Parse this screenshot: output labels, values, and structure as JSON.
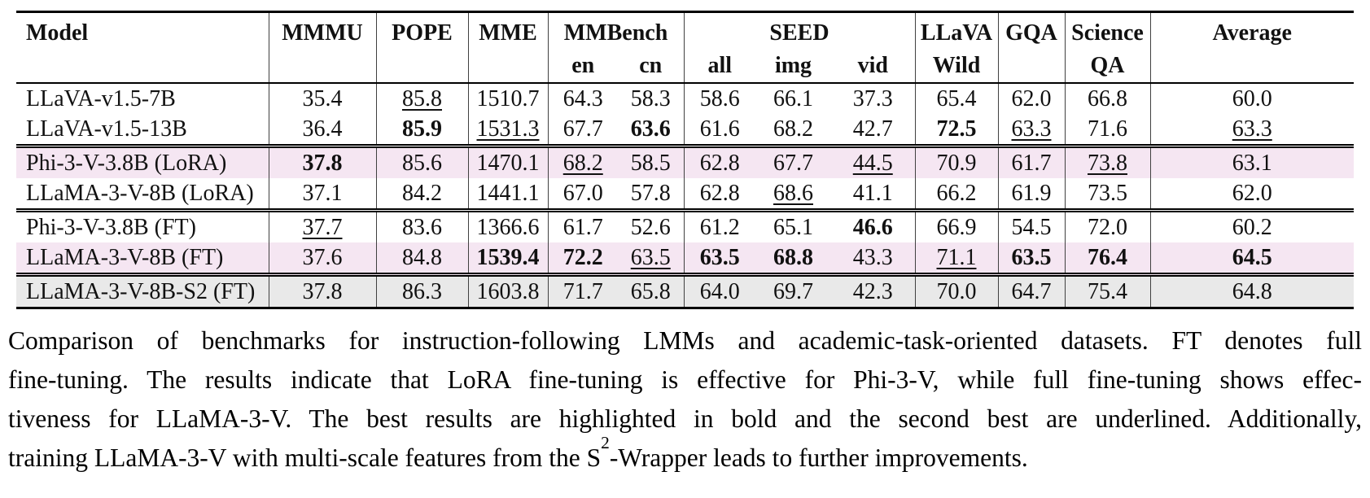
{
  "page": {
    "background": "#ffffff"
  },
  "table": {
    "highlight_colors": {
      "pink": "#f5e6f2",
      "gray": "#e9e9e9",
      "separator": "#404040",
      "rule": "#000000"
    },
    "columns": [
      {
        "id": "model",
        "label": [
          "Model"
        ]
      },
      {
        "id": "mmmu",
        "label": [
          "MMMU"
        ]
      },
      {
        "id": "pope",
        "label": [
          "POPE"
        ]
      },
      {
        "id": "mme",
        "label": [
          "MME"
        ]
      },
      {
        "id": "mmbench",
        "label": [
          "MMBench"
        ],
        "subs": [
          "en",
          "cn"
        ]
      },
      {
        "id": "seed",
        "label": [
          "SEED"
        ],
        "subs": [
          "all",
          "img",
          "vid"
        ]
      },
      {
        "id": "llava-wild",
        "label": [
          "LLaVA",
          "Wild"
        ]
      },
      {
        "id": "gqa",
        "label": [
          "GQA"
        ]
      },
      {
        "id": "science-qa",
        "label": [
          "Science",
          "QA"
        ]
      },
      {
        "id": "average",
        "label": [
          "Average"
        ]
      }
    ],
    "groups": [
      {
        "rows": [
          {
            "model": "LLaVA-v1.5-7B",
            "highlight": null,
            "cells": [
              {
                "v": "35.4"
              },
              {
                "v": "85.8",
                "u": true
              },
              {
                "v": "1510.7"
              },
              {
                "v": "64.3"
              },
              {
                "v": "58.3"
              },
              {
                "v": "58.6"
              },
              {
                "v": "66.1"
              },
              {
                "v": "37.3"
              },
              {
                "v": "65.4"
              },
              {
                "v": "62.0"
              },
              {
                "v": "66.8"
              },
              {
                "v": "60.0"
              }
            ]
          },
          {
            "model": "LLaVA-v1.5-13B",
            "highlight": null,
            "cells": [
              {
                "v": "36.4"
              },
              {
                "v": "85.9",
                "b": true
              },
              {
                "v": "1531.3",
                "u": true
              },
              {
                "v": "67.7"
              },
              {
                "v": "63.6",
                "b": true
              },
              {
                "v": "61.6"
              },
              {
                "v": "68.2"
              },
              {
                "v": "42.7"
              },
              {
                "v": "72.5",
                "b": true
              },
              {
                "v": "63.3",
                "u": true
              },
              {
                "v": "71.6"
              },
              {
                "v": "63.3",
                "u": true
              }
            ]
          }
        ]
      },
      {
        "rows": [
          {
            "model": "Phi-3-V-3.8B (LoRA)",
            "highlight": "pink",
            "cells": [
              {
                "v": "37.8",
                "b": true
              },
              {
                "v": "85.6"
              },
              {
                "v": "1470.1"
              },
              {
                "v": "68.2",
                "u": true
              },
              {
                "v": "58.5"
              },
              {
                "v": "62.8"
              },
              {
                "v": "67.7"
              },
              {
                "v": "44.5",
                "u": true
              },
              {
                "v": "70.9"
              },
              {
                "v": "61.7"
              },
              {
                "v": "73.8",
                "u": true
              },
              {
                "v": "63.1"
              }
            ]
          },
          {
            "model": "LLaMA-3-V-8B (LoRA)",
            "highlight": null,
            "cells": [
              {
                "v": "37.1"
              },
              {
                "v": "84.2"
              },
              {
                "v": "1441.1"
              },
              {
                "v": "67.0"
              },
              {
                "v": "57.8"
              },
              {
                "v": "62.8"
              },
              {
                "v": "68.6",
                "u": true
              },
              {
                "v": "41.1"
              },
              {
                "v": "66.2"
              },
              {
                "v": "61.9"
              },
              {
                "v": "73.5"
              },
              {
                "v": "62.0"
              }
            ]
          }
        ]
      },
      {
        "rows": [
          {
            "model": "Phi-3-V-3.8B (FT)",
            "highlight": null,
            "cells": [
              {
                "v": "37.7",
                "u": true
              },
              {
                "v": "83.6"
              },
              {
                "v": "1366.6"
              },
              {
                "v": "61.7"
              },
              {
                "v": "52.6"
              },
              {
                "v": "61.2"
              },
              {
                "v": "65.1"
              },
              {
                "v": "46.6",
                "b": true
              },
              {
                "v": "66.9"
              },
              {
                "v": "54.5"
              },
              {
                "v": "72.0"
              },
              {
                "v": "60.2"
              }
            ]
          },
          {
            "model": "LLaMA-3-V-8B (FT)",
            "highlight": "pink",
            "cells": [
              {
                "v": "37.6"
              },
              {
                "v": "84.8"
              },
              {
                "v": "1539.4",
                "b": true
              },
              {
                "v": "72.2",
                "b": true
              },
              {
                "v": "63.5",
                "u": true
              },
              {
                "v": "63.5",
                "b": true
              },
              {
                "v": "68.8",
                "b": true
              },
              {
                "v": "43.3"
              },
              {
                "v": "71.1",
                "u": true
              },
              {
                "v": "63.5",
                "b": true
              },
              {
                "v": "76.4",
                "b": true
              },
              {
                "v": "64.5",
                "b": true
              }
            ]
          }
        ]
      },
      {
        "rows": [
          {
            "model": "LLaMA-3-V-8B-S2 (FT)",
            "highlight": "gray",
            "cells": [
              {
                "v": "37.8"
              },
              {
                "v": "86.3"
              },
              {
                "v": "1603.8"
              },
              {
                "v": "71.7"
              },
              {
                "v": "65.8"
              },
              {
                "v": "64.0"
              },
              {
                "v": "69.7"
              },
              {
                "v": "42.3"
              },
              {
                "v": "70.0"
              },
              {
                "v": "64.7"
              },
              {
                "v": "75.4"
              },
              {
                "v": "64.8"
              }
            ]
          }
        ]
      }
    ]
  },
  "caption": {
    "line1": "Comparison of benchmarks for instruction-following LMMs and academic-task-oriented datasets. FT denotes full",
    "line2": "fine-tuning. The results indicate that LoRA fine-tuning is effective for Phi-3-V, while full fine-tuning shows effec-",
    "line3": "tiveness for LLaMA-3-V. The best results are highlighted in bold and the second best are underlined. Additionally,",
    "line4_pre": "training LLaMA-3-V with multi-scale features from the S",
    "line4_sup": "2",
    "line4_post": "-Wrapper leads to further improvements."
  }
}
